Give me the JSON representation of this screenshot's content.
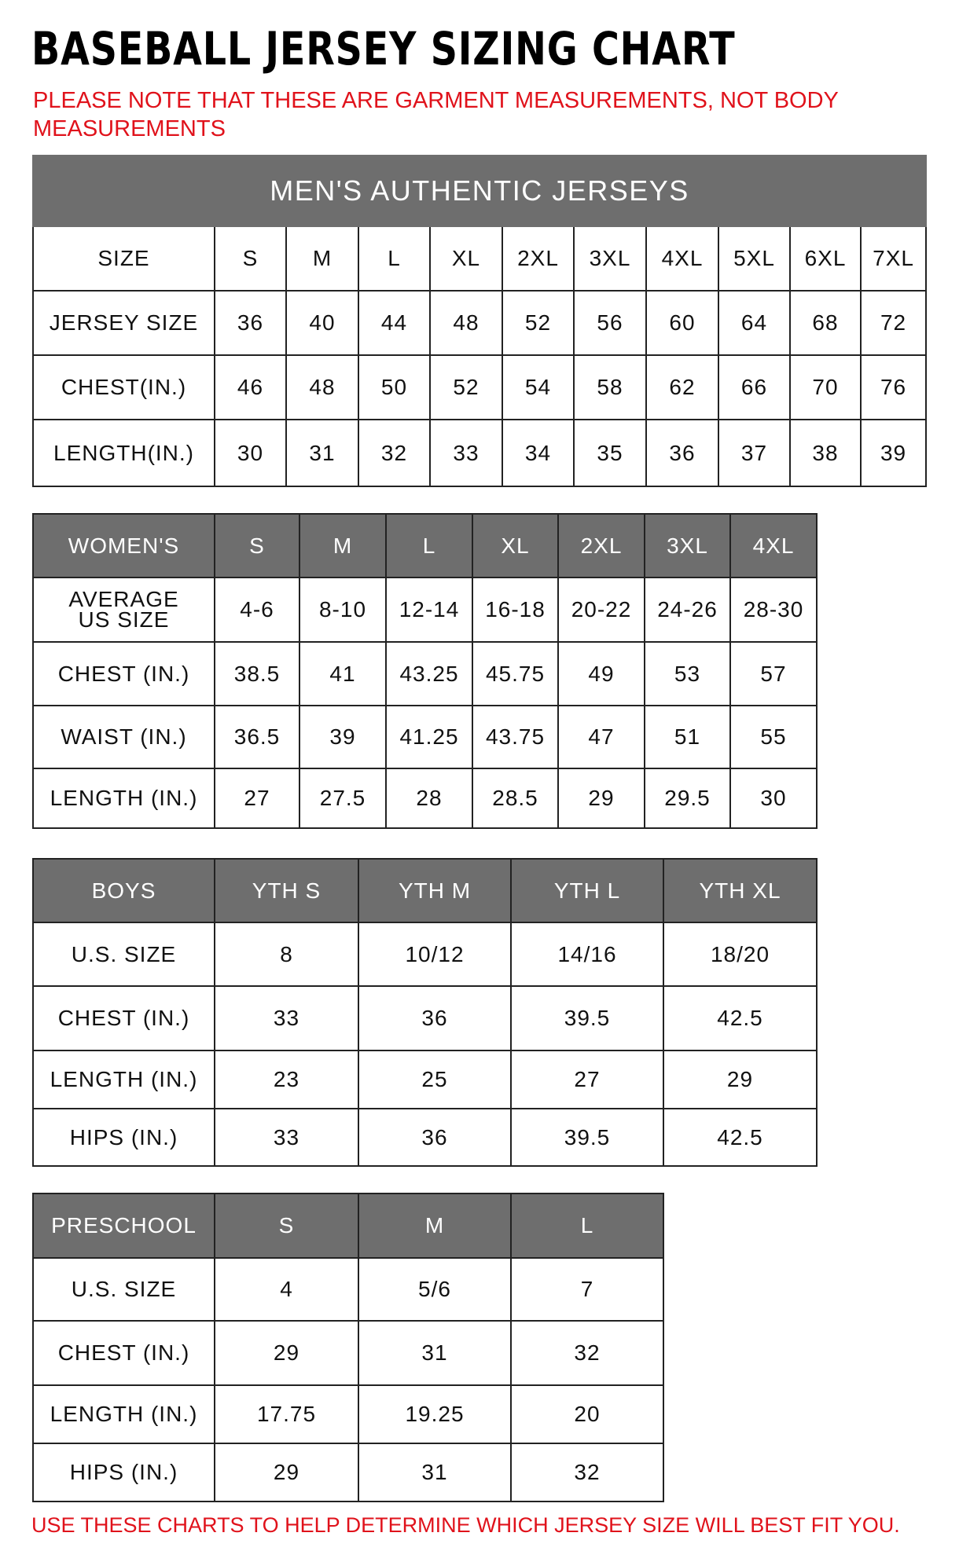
{
  "title": "BASEBALL JERSEY SIZING CHART",
  "note": "PLEASE NOTE THAT THESE ARE GARMENT MEASUREMENTS, NOT BODY MEASUREMENTS",
  "footer": "USE THESE CHARTS TO HELP DETERMINE WHICH JERSEY SIZE WILL BEST FIT YOU.",
  "colors": {
    "header_gray": "#6e6e6e",
    "accent_red": "#e0121b"
  },
  "tables": [
    {
      "caption": "MEN'S AUTHENTIC JERSEYS",
      "header": [
        "SIZE",
        "S",
        "M",
        "L",
        "XL",
        "2XL",
        "3XL",
        "4XL",
        "5XL",
        "6XL",
        "7XL"
      ],
      "header_style": "plain",
      "rows": [
        [
          "JERSEY SIZE",
          "36",
          "40",
          "44",
          "48",
          "52",
          "56",
          "60",
          "64",
          "68",
          "72"
        ],
        [
          "CHEST(IN.)",
          "46",
          "48",
          "50",
          "52",
          "54",
          "58",
          "62",
          "66",
          "70",
          "76"
        ],
        [
          "LENGTH(IN.)",
          "30",
          "31",
          "32",
          "33",
          "34",
          "35",
          "36",
          "37",
          "38",
          "39"
        ]
      ]
    },
    {
      "header": [
        "WOMEN'S",
        "S",
        "M",
        "L",
        "XL",
        "2XL",
        "3XL",
        "4XL"
      ],
      "header_style": "gray",
      "rows": [
        [
          "AVERAGE US SIZE",
          "4-6",
          "8-10",
          "12-14",
          "16-18",
          "20-22",
          "24-26",
          "28-30"
        ],
        [
          "CHEST (IN.)",
          "38.5",
          "41",
          "43.25",
          "45.75",
          "49",
          "53",
          "57"
        ],
        [
          "WAIST (IN.)",
          "36.5",
          "39",
          "41.25",
          "43.75",
          "47",
          "51",
          "55"
        ],
        [
          "LENGTH (IN.)",
          "27",
          "27.5",
          "28",
          "28.5",
          "29",
          "29.5",
          "30"
        ]
      ]
    },
    {
      "header": [
        "BOYS",
        "YTH S",
        "YTH M",
        "YTH L",
        "YTH XL"
      ],
      "header_style": "gray",
      "rows": [
        [
          "U.S. SIZE",
          "8",
          "10/12",
          "14/16",
          "18/20"
        ],
        [
          "CHEST (IN.)",
          "33",
          "36",
          "39.5",
          "42.5"
        ],
        [
          "LENGTH (IN.)",
          "23",
          "25",
          "27",
          "29"
        ],
        [
          "HIPS (IN.)",
          "33",
          "36",
          "39.5",
          "42.5"
        ]
      ]
    },
    {
      "header": [
        "PRESCHOOL",
        "S",
        "M",
        "L"
      ],
      "header_style": "gray",
      "rows": [
        [
          "U.S. SIZE",
          "4",
          "5/6",
          "7"
        ],
        [
          "CHEST (IN.)",
          "29",
          "31",
          "32"
        ],
        [
          "LENGTH (IN.)",
          "17.75",
          "19.25",
          "20"
        ],
        [
          "HIPS (IN.)",
          "29",
          "31",
          "32"
        ]
      ]
    }
  ]
}
